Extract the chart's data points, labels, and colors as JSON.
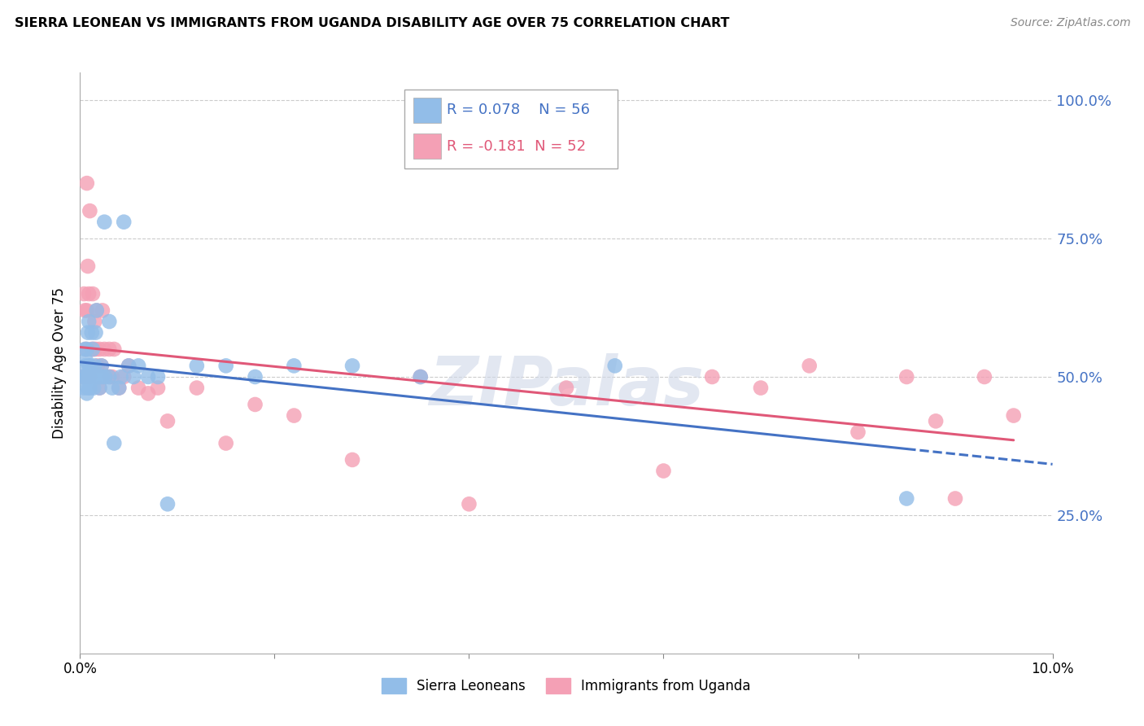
{
  "title": "SIERRA LEONEAN VS IMMIGRANTS FROM UGANDA DISABILITY AGE OVER 75 CORRELATION CHART",
  "source": "Source: ZipAtlas.com",
  "ylabel": "Disability Age Over 75",
  "r_sl": 0.078,
  "n_sl": 56,
  "r_ug": -0.181,
  "n_ug": 52,
  "legend_label_sl": "Sierra Leoneans",
  "legend_label_ug": "Immigrants from Uganda",
  "xlim": [
    0.0,
    0.1
  ],
  "ylim": [
    0.0,
    1.05
  ],
  "color_sl": "#92BDE8",
  "color_ug": "#F4A0B5",
  "trendline_sl": "#4472C4",
  "trendline_ug": "#E05878",
  "right_tick_color": "#4472C4",
  "sl_x": [
    0.0003,
    0.0004,
    0.0005,
    0.0005,
    0.0006,
    0.0006,
    0.0007,
    0.0007,
    0.0007,
    0.0008,
    0.0008,
    0.0008,
    0.0009,
    0.0009,
    0.0009,
    0.001,
    0.001,
    0.001,
    0.0012,
    0.0012,
    0.0013,
    0.0013,
    0.0014,
    0.0015,
    0.0015,
    0.0016,
    0.0016,
    0.0017,
    0.0018,
    0.002,
    0.002,
    0.0022,
    0.0023,
    0.0025,
    0.0026,
    0.003,
    0.003,
    0.0033,
    0.0035,
    0.004,
    0.0042,
    0.0045,
    0.005,
    0.0055,
    0.006,
    0.007,
    0.008,
    0.009,
    0.012,
    0.015,
    0.018,
    0.022,
    0.028,
    0.035,
    0.055,
    0.085
  ],
  "sl_y": [
    0.5,
    0.48,
    0.52,
    0.55,
    0.5,
    0.53,
    0.5,
    0.47,
    0.55,
    0.5,
    0.48,
    0.58,
    0.5,
    0.52,
    0.6,
    0.5,
    0.48,
    0.52,
    0.5,
    0.58,
    0.5,
    0.55,
    0.48,
    0.5,
    0.52,
    0.5,
    0.58,
    0.62,
    0.5,
    0.5,
    0.48,
    0.52,
    0.5,
    0.78,
    0.5,
    0.5,
    0.6,
    0.48,
    0.38,
    0.48,
    0.5,
    0.78,
    0.52,
    0.5,
    0.52,
    0.5,
    0.5,
    0.27,
    0.52,
    0.52,
    0.5,
    0.52,
    0.52,
    0.5,
    0.52,
    0.28
  ],
  "ug_x": [
    0.0003,
    0.0004,
    0.0005,
    0.0006,
    0.0007,
    0.0007,
    0.0008,
    0.0008,
    0.0009,
    0.001,
    0.001,
    0.0012,
    0.0013,
    0.0014,
    0.0015,
    0.0016,
    0.0017,
    0.0018,
    0.002,
    0.002,
    0.0022,
    0.0023,
    0.0025,
    0.003,
    0.003,
    0.0033,
    0.0035,
    0.004,
    0.0045,
    0.005,
    0.006,
    0.007,
    0.008,
    0.009,
    0.012,
    0.015,
    0.018,
    0.022,
    0.028,
    0.035,
    0.04,
    0.05,
    0.06,
    0.065,
    0.07,
    0.075,
    0.08,
    0.085,
    0.088,
    0.09,
    0.093,
    0.096
  ],
  "ug_y": [
    0.5,
    0.65,
    0.62,
    0.55,
    0.85,
    0.62,
    0.5,
    0.7,
    0.65,
    0.8,
    0.5,
    0.55,
    0.65,
    0.55,
    0.6,
    0.55,
    0.62,
    0.52,
    0.55,
    0.48,
    0.52,
    0.62,
    0.55,
    0.5,
    0.55,
    0.5,
    0.55,
    0.48,
    0.5,
    0.52,
    0.48,
    0.47,
    0.48,
    0.42,
    0.48,
    0.38,
    0.45,
    0.43,
    0.35,
    0.5,
    0.27,
    0.48,
    0.33,
    0.5,
    0.48,
    0.52,
    0.4,
    0.5,
    0.42,
    0.28,
    0.5,
    0.43
  ]
}
